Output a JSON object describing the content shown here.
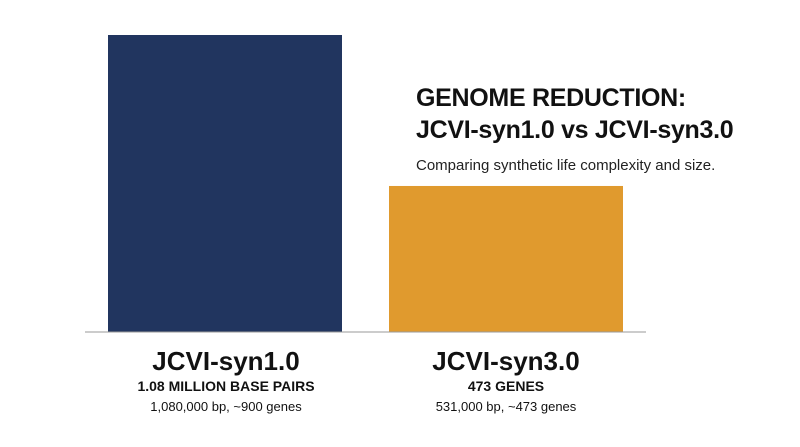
{
  "title": {
    "line1": "GENOME REDUCTION:",
    "line2": "JCVI-syn1.0 vs JCVI-syn3.0",
    "subtitle": "Comparing synthetic life complexity and size."
  },
  "colors": {
    "syn1": "#21355f",
    "syn3": "#e09a2e",
    "baseline": "#9a9a9a"
  },
  "chart_data": {
    "type": "bar",
    "title": "GENOME REDUCTION: JCVI-syn1.0 vs JCVI-syn3.0",
    "subtitle": "Comparing synthetic life complexity and size.",
    "categories": [
      "JCVI-syn1.0",
      "JCVI-syn3.0"
    ],
    "values": [
      1080000,
      531000
    ],
    "unit": "bp",
    "ylim": [
      0,
      1080000
    ],
    "grid": false,
    "bars": [
      {
        "name": "JCVI-syn1.0",
        "headline": "1.08 MILLION BASE PAIRS",
        "detail": "1,080,000 bp, ~900 genes",
        "value": 1080000,
        "color": "#21355f"
      },
      {
        "name": "JCVI-syn3.0",
        "headline": "473 GENES",
        "detail": "531,000 bp, ~473 genes",
        "value": 531000,
        "color": "#e09a2e"
      }
    ]
  }
}
